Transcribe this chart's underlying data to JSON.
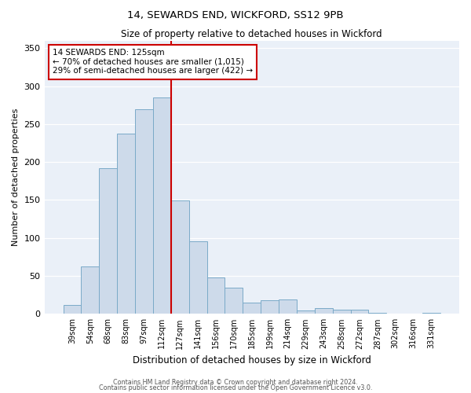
{
  "title": "14, SEWARDS END, WICKFORD, SS12 9PB",
  "subtitle": "Size of property relative to detached houses in Wickford",
  "xlabel": "Distribution of detached houses by size in Wickford",
  "ylabel": "Number of detached properties",
  "bar_labels": [
    "39sqm",
    "54sqm",
    "68sqm",
    "83sqm",
    "97sqm",
    "112sqm",
    "127sqm",
    "141sqm",
    "156sqm",
    "170sqm",
    "185sqm",
    "199sqm",
    "214sqm",
    "229sqm",
    "243sqm",
    "258sqm",
    "272sqm",
    "287sqm",
    "302sqm",
    "316sqm",
    "331sqm"
  ],
  "bar_heights": [
    12,
    62,
    192,
    237,
    270,
    285,
    149,
    96,
    48,
    35,
    15,
    18,
    19,
    4,
    8,
    5,
    5,
    1,
    0,
    0,
    1
  ],
  "bar_color": "#cddaea",
  "bar_edge_color": "#7aaac8",
  "vline_x_index": 6,
  "vline_color": "#cc0000",
  "annotation_text": "14 SEWARDS END: 125sqm\n← 70% of detached houses are smaller (1,015)\n29% of semi-detached houses are larger (422) →",
  "annotation_box_edge": "#cc0000",
  "ylim": [
    0,
    360
  ],
  "yticks": [
    0,
    50,
    100,
    150,
    200,
    250,
    300,
    350
  ],
  "footer_line1": "Contains HM Land Registry data © Crown copyright and database right 2024.",
  "footer_line2": "Contains public sector information licensed under the Open Government Licence v3.0.",
  "fig_facecolor": "#ffffff",
  "ax_facecolor": "#eaf0f8",
  "grid_color": "#ffffff",
  "title_fontsize": 9.5,
  "subtitle_fontsize": 8.5
}
